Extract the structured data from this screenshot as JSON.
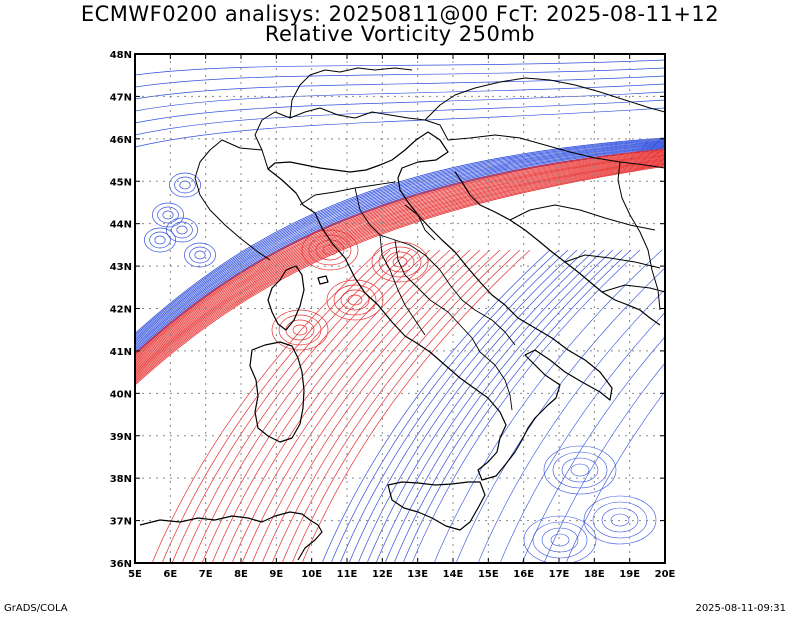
{
  "title_line1": "ECMWF0200 analisys: 20250811@00 FcT: 2025-08-11+12",
  "title_line2": "Relative Vorticity 250mb",
  "footer_left": "GrADS/COLA",
  "footer_right": "2025-08-11-09:31",
  "map": {
    "lon_range": [
      5,
      20
    ],
    "lat_range": [
      36,
      48
    ],
    "lon_labels": [
      "5E",
      "6E",
      "7E",
      "8E",
      "9E",
      "10E",
      "11E",
      "12E",
      "13E",
      "14E",
      "15E",
      "16E",
      "17E",
      "18E",
      "19E",
      "20E"
    ],
    "lat_labels": [
      "36N",
      "37N",
      "38N",
      "39N",
      "40N",
      "41N",
      "42N",
      "43N",
      "44N",
      "45N",
      "46N",
      "47N",
      "48N"
    ],
    "grid": "dotted",
    "colors": {
      "positive": "#e83030",
      "negative": "#3050e0",
      "coast": "#000000"
    }
  }
}
